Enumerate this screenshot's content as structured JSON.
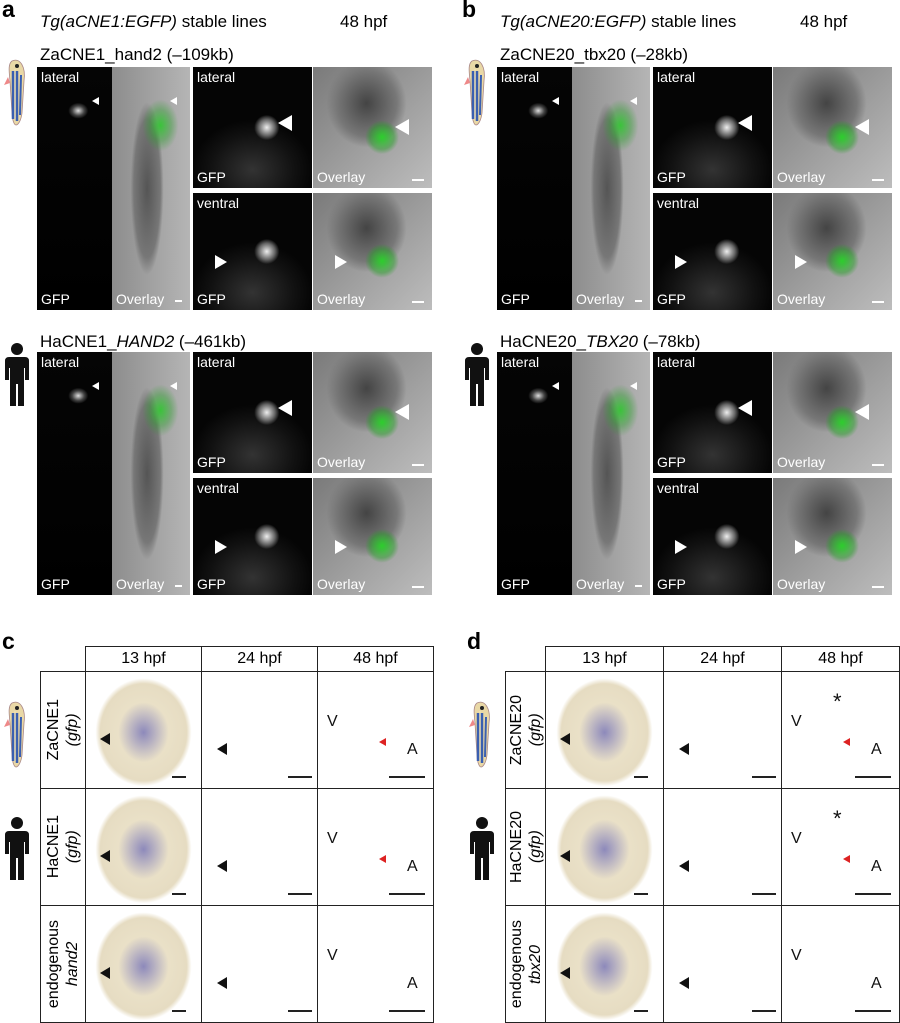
{
  "panels": [
    {
      "letter": "a",
      "header": {
        "construct": "Tg(aCNE1:EGFP)",
        "suffix": "stable lines",
        "stage": "48 hpf"
      },
      "rows": [
        {
          "label": {
            "text": "ZaCNE1_hand2 (–109kb)"
          },
          "whole": {
            "view": "lateral",
            "left": "GFP",
            "right": "Overlay"
          },
          "lateral_closeup": {
            "view": "lateral",
            "left": "GFP",
            "right": "Overlay"
          },
          "ventral_closeup": {
            "view": "ventral",
            "left": "GFP",
            "right": "Overlay"
          }
        },
        {
          "label": {
            "prefix": "HaCNE1_",
            "gene": "HAND2",
            "distance": "(–461kb)"
          },
          "whole": {
            "view": "lateral",
            "left": "GFP",
            "right": "Overlay"
          },
          "lateral_closeup": {
            "view": "lateral",
            "left": "GFP",
            "right": "Overlay"
          },
          "ventral_closeup": {
            "view": "ventral",
            "left": "GFP",
            "right": "Overlay"
          }
        }
      ]
    },
    {
      "letter": "b",
      "header": {
        "construct": "Tg(aCNE20:EGFP)",
        "suffix": "stable lines",
        "stage": "48 hpf"
      },
      "rows": [
        {
          "label": {
            "text": "ZaCNE20_tbx20 (–28kb)"
          },
          "whole": {
            "view": "lateral",
            "left": "GFP",
            "right": "Overlay"
          },
          "lateral_closeup": {
            "view": "lateral",
            "left": "GFP",
            "right": "Overlay"
          },
          "ventral_closeup": {
            "view": "ventral",
            "left": "GFP",
            "right": "Overlay"
          }
        },
        {
          "label": {
            "prefix": "HaCNE20_",
            "gene": "TBX20",
            "distance": "(–78kb)"
          },
          "whole": {
            "view": "lateral",
            "left": "GFP",
            "right": "Overlay"
          },
          "lateral_closeup": {
            "view": "lateral",
            "left": "GFP",
            "right": "Overlay"
          },
          "ventral_closeup": {
            "view": "ventral",
            "left": "GFP",
            "right": "Overlay"
          }
        }
      ]
    },
    {
      "letter": "c",
      "columns": [
        "13 hpf",
        "24 hpf",
        "48 hpf"
      ],
      "rows": [
        {
          "line1": "ZaCNE1",
          "line2": "(gfp)",
          "annotations": [
            "V",
            "A"
          ]
        },
        {
          "line1": "HaCNE1",
          "line2": "(gfp)",
          "annotations": [
            "V",
            "A"
          ]
        },
        {
          "line1": "endogenous",
          "line2": "hand2",
          "annotations": [
            "V",
            "A"
          ]
        }
      ]
    },
    {
      "letter": "d",
      "columns": [
        "13 hpf",
        "24 hpf",
        "48 hpf"
      ],
      "rows": [
        {
          "line1": "ZaCNE20",
          "line2": "(gfp)",
          "annotations": [
            "V",
            "*",
            "A"
          ]
        },
        {
          "line1": "HaCNE20",
          "line2": "(gfp)",
          "annotations": [
            "V",
            "*",
            "A"
          ]
        },
        {
          "line1": "endogenous",
          "line2": "tbx20",
          "annotations": [
            "V",
            "A"
          ]
        }
      ]
    }
  ]
}
